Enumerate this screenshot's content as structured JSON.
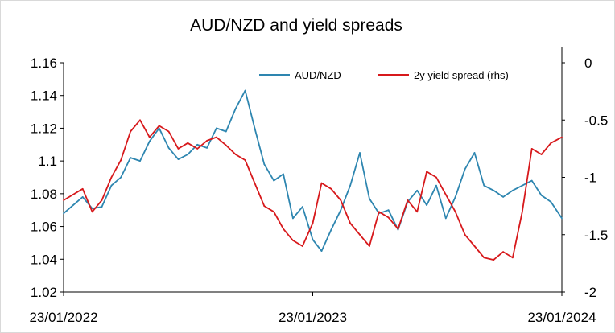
{
  "chart_data": {
    "type": "line",
    "title": "AUD/NZD and yield spreads",
    "xlabel": "",
    "ylabel": "",
    "x_range": [
      "2022-01-23",
      "2024-01-23"
    ],
    "x_tick_labels": [
      "23/01/2022",
      "23/01/2023",
      "23/01/2024"
    ],
    "y_left": {
      "range": [
        1.02,
        1.16
      ],
      "ticks": [
        "1.02",
        "1.04",
        "1.06",
        "1.08",
        "1.1",
        "1.12",
        "1.14",
        "1.16"
      ]
    },
    "y_right": {
      "range": [
        -2,
        0
      ],
      "ticks": [
        "-2",
        "-1.5",
        "-1",
        "-0.5",
        "0"
      ]
    },
    "grid": false,
    "legend": "top-center",
    "series": [
      {
        "name": "AUD/NZD",
        "axis": "left",
        "color": "#2E86B0",
        "x": [
          "2022-01-23",
          "2022-02-06",
          "2022-02-20",
          "2022-03-06",
          "2022-03-20",
          "2022-04-03",
          "2022-04-17",
          "2022-05-01",
          "2022-05-15",
          "2022-05-29",
          "2022-06-12",
          "2022-06-26",
          "2022-07-10",
          "2022-07-24",
          "2022-08-07",
          "2022-08-21",
          "2022-09-04",
          "2022-09-18",
          "2022-10-02",
          "2022-10-16",
          "2022-10-30",
          "2022-11-13",
          "2022-11-27",
          "2022-12-11",
          "2022-12-25",
          "2023-01-08",
          "2023-01-23",
          "2023-02-05",
          "2023-02-19",
          "2023-03-05",
          "2023-03-19",
          "2023-04-02",
          "2023-04-16",
          "2023-04-30",
          "2023-05-14",
          "2023-05-28",
          "2023-06-11",
          "2023-06-25",
          "2023-07-09",
          "2023-07-23",
          "2023-08-06",
          "2023-08-20",
          "2023-09-03",
          "2023-09-17",
          "2023-10-01",
          "2023-10-15",
          "2023-10-29",
          "2023-11-12",
          "2023-11-26",
          "2023-12-10",
          "2023-12-24",
          "2024-01-07",
          "2024-01-23"
        ],
        "values": [
          1.068,
          1.073,
          1.078,
          1.071,
          1.072,
          1.085,
          1.09,
          1.102,
          1.1,
          1.112,
          1.12,
          1.108,
          1.101,
          1.104,
          1.11,
          1.108,
          1.12,
          1.118,
          1.132,
          1.143,
          1.12,
          1.098,
          1.088,
          1.092,
          1.065,
          1.072,
          1.052,
          1.045,
          1.058,
          1.07,
          1.085,
          1.105,
          1.077,
          1.068,
          1.07,
          1.058,
          1.075,
          1.082,
          1.073,
          1.085,
          1.065,
          1.078,
          1.095,
          1.105,
          1.085,
          1.082,
          1.078,
          1.082,
          1.085,
          1.088,
          1.079,
          1.075,
          1.065
        ]
      },
      {
        "name": "2y yield spread (rhs)",
        "axis": "right",
        "color": "#D7191C",
        "x": [
          "2022-01-23",
          "2022-02-06",
          "2022-02-20",
          "2022-03-06",
          "2022-03-20",
          "2022-04-03",
          "2022-04-17",
          "2022-05-01",
          "2022-05-15",
          "2022-05-29",
          "2022-06-12",
          "2022-06-26",
          "2022-07-10",
          "2022-07-24",
          "2022-08-07",
          "2022-08-21",
          "2022-09-04",
          "2022-09-18",
          "2022-10-02",
          "2022-10-16",
          "2022-10-30",
          "2022-11-13",
          "2022-11-27",
          "2022-12-11",
          "2022-12-25",
          "2023-01-08",
          "2023-01-23",
          "2023-02-05",
          "2023-02-19",
          "2023-03-05",
          "2023-03-19",
          "2023-04-02",
          "2023-04-16",
          "2023-04-30",
          "2023-05-14",
          "2023-05-28",
          "2023-06-11",
          "2023-06-25",
          "2023-07-09",
          "2023-07-23",
          "2023-08-06",
          "2023-08-20",
          "2023-09-03",
          "2023-09-17",
          "2023-10-01",
          "2023-10-15",
          "2023-10-29",
          "2023-11-12",
          "2023-11-26",
          "2023-12-10",
          "2023-12-24",
          "2024-01-07",
          "2024-01-23"
        ],
        "values": [
          -1.2,
          -1.15,
          -1.1,
          -1.3,
          -1.2,
          -1.0,
          -0.85,
          -0.6,
          -0.5,
          -0.65,
          -0.55,
          -0.6,
          -0.75,
          -0.7,
          -0.75,
          -0.68,
          -0.65,
          -0.72,
          -0.8,
          -0.85,
          -1.05,
          -1.25,
          -1.3,
          -1.45,
          -1.55,
          -1.6,
          -1.4,
          -1.05,
          -1.1,
          -1.2,
          -1.4,
          -1.5,
          -1.6,
          -1.3,
          -1.35,
          -1.45,
          -1.2,
          -1.3,
          -0.95,
          -1.0,
          -1.15,
          -1.3,
          -1.5,
          -1.6,
          -1.7,
          -1.72,
          -1.65,
          -1.7,
          -1.3,
          -0.75,
          -0.8,
          -0.7,
          -0.65
        ]
      }
    ]
  }
}
